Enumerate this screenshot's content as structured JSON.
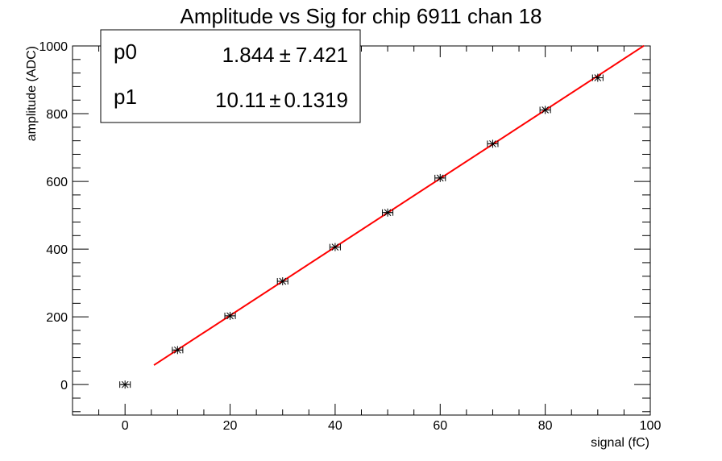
{
  "chart_data": {
    "type": "scatter",
    "title": "Amplitude vs Sig for chip 6911 chan 18",
    "xlabel": "signal (fC)",
    "ylabel": "amplitude (ADC)",
    "xlim": [
      -10,
      100
    ],
    "ylim": [
      -90,
      1000
    ],
    "xticks": [
      0,
      20,
      40,
      60,
      80,
      100
    ],
    "yticks": [
      0,
      200,
      400,
      600,
      800,
      1000
    ],
    "grid": false,
    "colors": {
      "points": "#000000",
      "fit": "#ff0000"
    },
    "series": [
      {
        "x": [
          0,
          10,
          20,
          30,
          40,
          50,
          60,
          70,
          80,
          90
        ],
        "y": [
          0,
          102,
          203,
          305,
          406,
          508,
          610,
          711,
          811,
          906
        ],
        "xerr": [
          1,
          1,
          1,
          1,
          1,
          1,
          1,
          1,
          1,
          1
        ]
      }
    ],
    "fit": {
      "p0": 1.844,
      "p1": 10.11,
      "x_range": [
        5.5,
        98.8
      ]
    },
    "stats_box": {
      "position": "top-left",
      "rows": [
        {
          "label": "p0",
          "value": "1.844",
          "pm": "±",
          "error": "7.421"
        },
        {
          "label": "p1",
          "value": "10.11",
          "pm": "±",
          "error": "0.1319"
        }
      ]
    }
  }
}
